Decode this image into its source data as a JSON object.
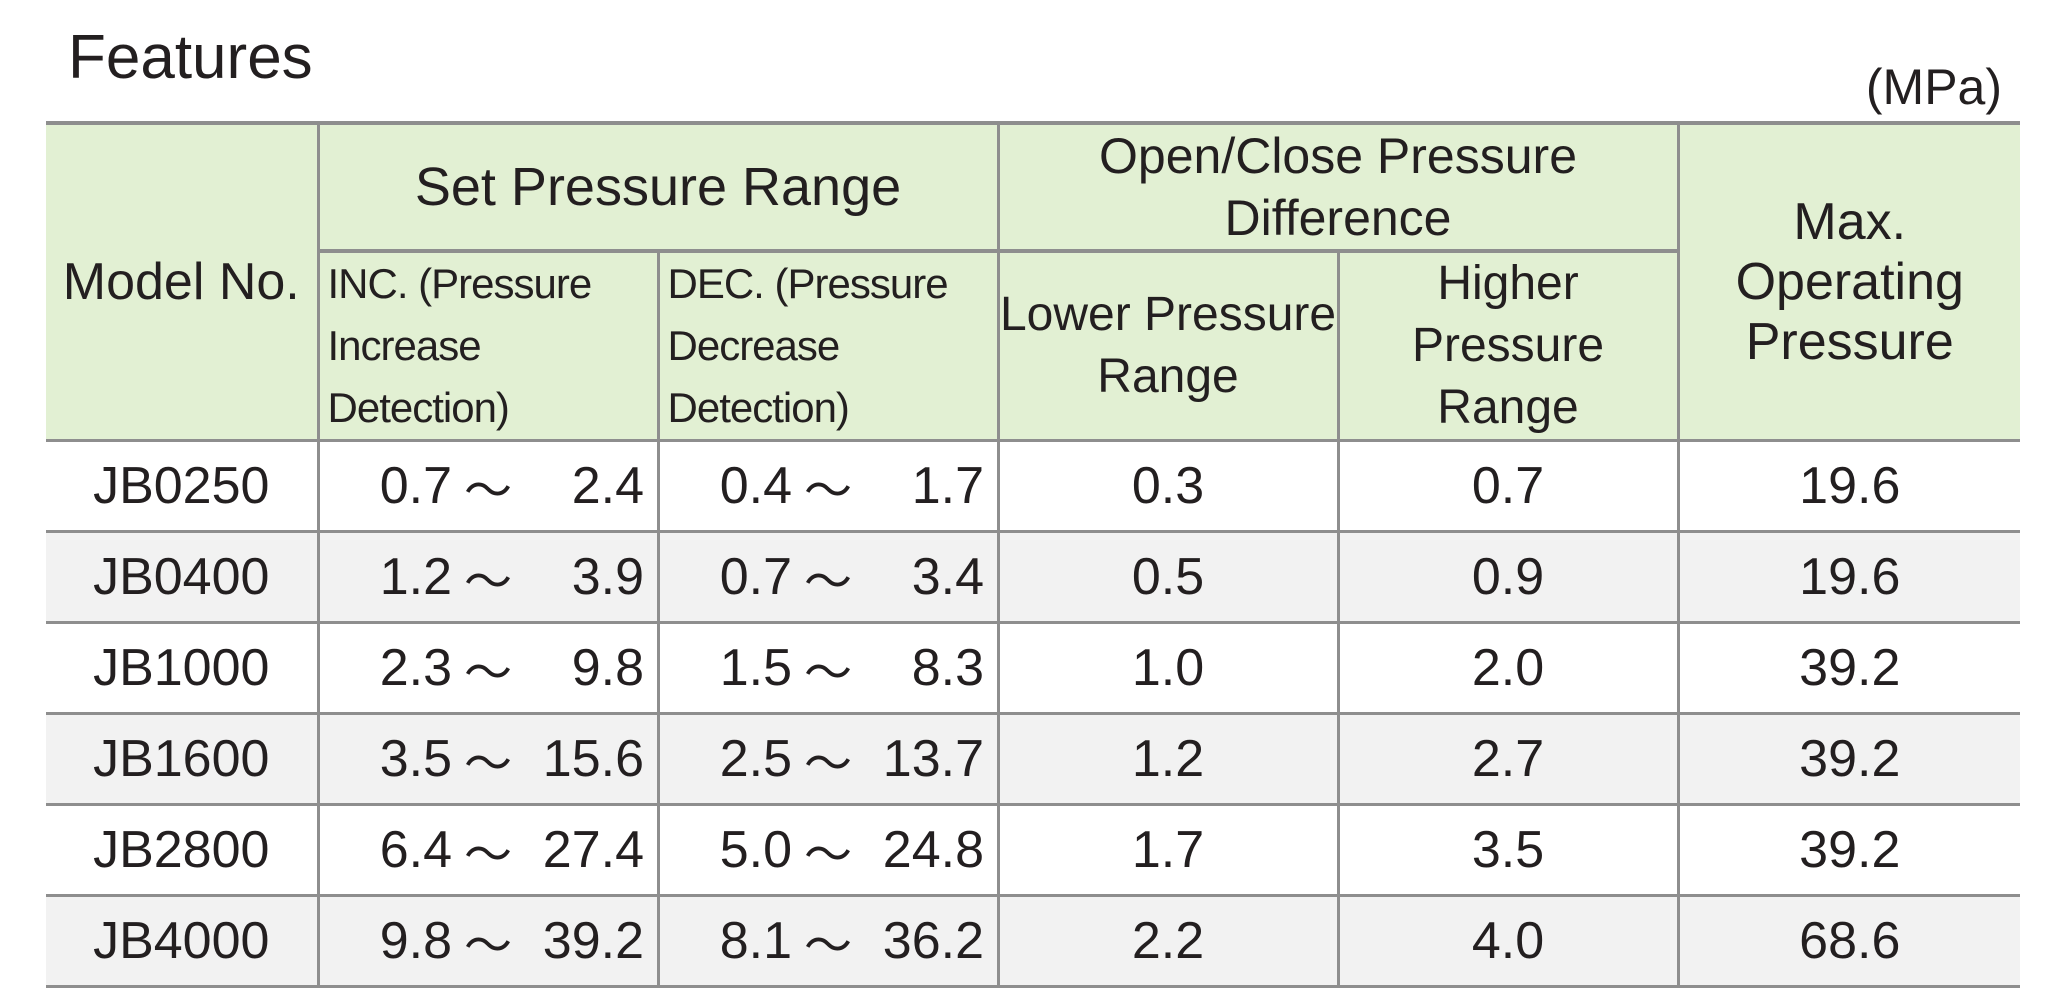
{
  "title": "Features",
  "unit": "(MPa)",
  "headers": {
    "model": "Model No.",
    "set_pressure_range": "Set Pressure Range",
    "open_close_diff": "Open/Close Pressure Difference",
    "max_operating": "Max. Operating Pressure",
    "inc_line1": "INC. (Pressure",
    "inc_line2": "Increase Detection)",
    "dec_line1": "DEC. (Pressure",
    "dec_line2": "Decrease Detection)",
    "lower_line1": "Lower Pressure",
    "lower_line2": "Range",
    "higher_line1": "Higher Pressure",
    "higher_line2": "Range",
    "max_line1": "Max. Operating",
    "max_line2": "Pressure"
  },
  "separator": "～",
  "rows": [
    {
      "model": "JB0250",
      "inc_lo": "0.7",
      "inc_hi": "2.4",
      "dec_lo": "0.4",
      "dec_hi": "1.7",
      "lower": "0.3",
      "higher": "0.7",
      "max": "19.6"
    },
    {
      "model": "JB0400",
      "inc_lo": "1.2",
      "inc_hi": "3.9",
      "dec_lo": "0.7",
      "dec_hi": "3.4",
      "lower": "0.5",
      "higher": "0.9",
      "max": "19.6"
    },
    {
      "model": "JB1000",
      "inc_lo": "2.3",
      "inc_hi": "9.8",
      "dec_lo": "1.5",
      "dec_hi": "8.3",
      "lower": "1.0",
      "higher": "2.0",
      "max": "39.2"
    },
    {
      "model": "JB1600",
      "inc_lo": "3.5",
      "inc_hi": "15.6",
      "dec_lo": "2.5",
      "dec_hi": "13.7",
      "lower": "1.2",
      "higher": "2.7",
      "max": "39.2"
    },
    {
      "model": "JB2800",
      "inc_lo": "6.4",
      "inc_hi": "27.4",
      "dec_lo": "5.0",
      "dec_hi": "24.8",
      "lower": "1.7",
      "higher": "3.5",
      "max": "39.2"
    },
    {
      "model": "JB4000",
      "inc_lo": "9.8",
      "inc_hi": "39.2",
      "dec_lo": "8.1",
      "dec_hi": "36.2",
      "lower": "2.2",
      "higher": "4.0",
      "max": "68.6"
    }
  ]
}
